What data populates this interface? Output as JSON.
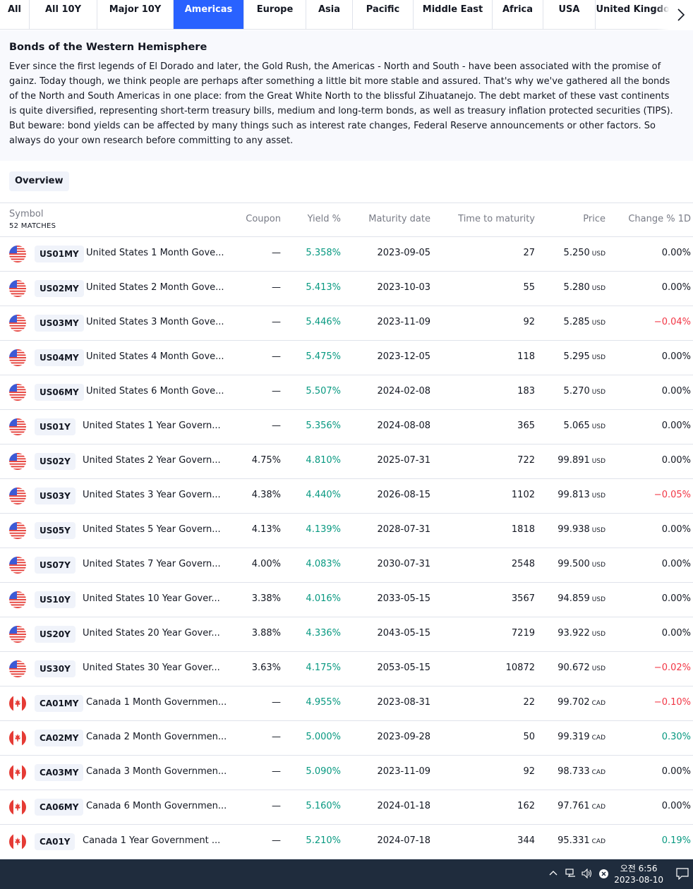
{
  "tabs": [
    {
      "label": "All",
      "width": 42
    },
    {
      "label": "All 10Y",
      "width": 96
    },
    {
      "label": "Major 10Y",
      "width": 108
    },
    {
      "label": "Americas",
      "width": 100
    },
    {
      "label": "Europe",
      "width": 88
    },
    {
      "label": "Asia",
      "width": 66
    },
    {
      "label": "Pacific",
      "width": 86
    },
    {
      "label": "Middle East",
      "width": 112
    },
    {
      "label": "Africa",
      "width": 72
    },
    {
      "label": "USA",
      "width": 74
    },
    {
      "label": "United Kingdom",
      "width": 120
    }
  ],
  "active_tab": "Americas",
  "description": {
    "title": "Bonds of the Western Hemisphere",
    "body": "Ever since the first legends of El Dorado and later, the Gold Rush, the Americas - North and South - have been associated with the promise of gainz. Today though, we think people are perhaps after something a little bit more stable and assured. That's why we've gathered all the bonds of the North and South Americas in one place: from the Great White North to the blissful Zihuatanejo. The debt market of these vast continents is quite diversified, representing short-term treasury bills, medium and long-term bonds, as well as treasury inflation protected securities (TIPS). But beware: bond yields can be affected by many things such as interest rate changes, Federal Reserve announcements or other factors. So always do your own research before committing to any asset."
  },
  "overview_label": "Overview",
  "table": {
    "headers": {
      "symbol": "Symbol",
      "matches": "52 MATCHES",
      "coupon": "Coupon",
      "yield": "Yield %",
      "maturity": "Maturity date",
      "ttm": "Time to maturity",
      "price": "Price",
      "change": "Change % 1D"
    },
    "rows": [
      {
        "flag": "us",
        "ticker": "US01MY",
        "name": "United States 1 Month Gove...",
        "coupon": "—",
        "yield": "5.358%",
        "maturity": "2023-09-05",
        "ttm": "27",
        "price": "5.250",
        "currency": "USD",
        "change": "0.00%",
        "dir": "flat"
      },
      {
        "flag": "us",
        "ticker": "US02MY",
        "name": "United States 2 Month Gove...",
        "coupon": "—",
        "yield": "5.413%",
        "maturity": "2023-10-03",
        "ttm": "55",
        "price": "5.280",
        "currency": "USD",
        "change": "0.00%",
        "dir": "flat"
      },
      {
        "flag": "us",
        "ticker": "US03MY",
        "name": "United States 3 Month Gove...",
        "coupon": "—",
        "yield": "5.446%",
        "maturity": "2023-11-09",
        "ttm": "92",
        "price": "5.285",
        "currency": "USD",
        "change": "−0.04%",
        "dir": "neg"
      },
      {
        "flag": "us",
        "ticker": "US04MY",
        "name": "United States 4 Month Gove...",
        "coupon": "—",
        "yield": "5.475%",
        "maturity": "2023-12-05",
        "ttm": "118",
        "price": "5.295",
        "currency": "USD",
        "change": "0.00%",
        "dir": "flat"
      },
      {
        "flag": "us",
        "ticker": "US06MY",
        "name": "United States 6 Month Gove...",
        "coupon": "—",
        "yield": "5.507%",
        "maturity": "2024-02-08",
        "ttm": "183",
        "price": "5.270",
        "currency": "USD",
        "change": "0.00%",
        "dir": "flat"
      },
      {
        "flag": "us",
        "ticker": "US01Y",
        "name": "United States 1 Year Govern...",
        "coupon": "—",
        "yield": "5.356%",
        "maturity": "2024-08-08",
        "ttm": "365",
        "price": "5.065",
        "currency": "USD",
        "change": "0.00%",
        "dir": "flat"
      },
      {
        "flag": "us",
        "ticker": "US02Y",
        "name": "United States 2 Year Govern...",
        "coupon": "4.75%",
        "yield": "4.810%",
        "maturity": "2025-07-31",
        "ttm": "722",
        "price": "99.891",
        "currency": "USD",
        "change": "0.00%",
        "dir": "flat"
      },
      {
        "flag": "us",
        "ticker": "US03Y",
        "name": "United States 3 Year Govern...",
        "coupon": "4.38%",
        "yield": "4.440%",
        "maturity": "2026-08-15",
        "ttm": "1102",
        "price": "99.813",
        "currency": "USD",
        "change": "−0.05%",
        "dir": "neg"
      },
      {
        "flag": "us",
        "ticker": "US05Y",
        "name": "United States 5 Year Govern...",
        "coupon": "4.13%",
        "yield": "4.139%",
        "maturity": "2028-07-31",
        "ttm": "1818",
        "price": "99.938",
        "currency": "USD",
        "change": "0.00%",
        "dir": "flat"
      },
      {
        "flag": "us",
        "ticker": "US07Y",
        "name": "United States 7 Year Govern...",
        "coupon": "4.00%",
        "yield": "4.083%",
        "maturity": "2030-07-31",
        "ttm": "2548",
        "price": "99.500",
        "currency": "USD",
        "change": "0.00%",
        "dir": "flat"
      },
      {
        "flag": "us",
        "ticker": "US10Y",
        "name": "United States 10 Year Gover...",
        "coupon": "3.38%",
        "yield": "4.016%",
        "maturity": "2033-05-15",
        "ttm": "3567",
        "price": "94.859",
        "currency": "USD",
        "change": "0.00%",
        "dir": "flat"
      },
      {
        "flag": "us",
        "ticker": "US20Y",
        "name": "United States 20 Year Gover...",
        "coupon": "3.88%",
        "yield": "4.336%",
        "maturity": "2043-05-15",
        "ttm": "7219",
        "price": "93.922",
        "currency": "USD",
        "change": "0.00%",
        "dir": "flat"
      },
      {
        "flag": "us",
        "ticker": "US30Y",
        "name": "United States 30 Year Gover...",
        "coupon": "3.63%",
        "yield": "4.175%",
        "maturity": "2053-05-15",
        "ttm": "10872",
        "price": "90.672",
        "currency": "USD",
        "change": "−0.02%",
        "dir": "neg"
      },
      {
        "flag": "ca",
        "ticker": "CA01MY",
        "name": "Canada 1 Month Governmen...",
        "coupon": "—",
        "yield": "4.955%",
        "maturity": "2023-08-31",
        "ttm": "22",
        "price": "99.702",
        "currency": "CAD",
        "change": "−0.10%",
        "dir": "neg"
      },
      {
        "flag": "ca",
        "ticker": "CA02MY",
        "name": "Canada 2 Month Governmen...",
        "coupon": "—",
        "yield": "5.000%",
        "maturity": "2023-09-28",
        "ttm": "50",
        "price": "99.319",
        "currency": "CAD",
        "change": "0.30%",
        "dir": "pos"
      },
      {
        "flag": "ca",
        "ticker": "CA03MY",
        "name": "Canada 3 Month Governmen...",
        "coupon": "—",
        "yield": "5.090%",
        "maturity": "2023-11-09",
        "ttm": "92",
        "price": "98.733",
        "currency": "CAD",
        "change": "0.00%",
        "dir": "flat"
      },
      {
        "flag": "ca",
        "ticker": "CA06MY",
        "name": "Canada 6 Month Governmen...",
        "coupon": "—",
        "yield": "5.160%",
        "maturity": "2024-01-18",
        "ttm": "162",
        "price": "97.761",
        "currency": "CAD",
        "change": "0.00%",
        "dir": "flat"
      },
      {
        "flag": "ca",
        "ticker": "CA01Y",
        "name": "Canada 1 Year Government ...",
        "coupon": "—",
        "yield": "5.210%",
        "maturity": "2024-07-18",
        "ttm": "344",
        "price": "95.331",
        "currency": "CAD",
        "change": "0.19%",
        "dir": "pos"
      }
    ]
  },
  "taskbar": {
    "time": "오전 6:56",
    "date": "2023-08-10",
    "icons": [
      "chevron-up-icon",
      "network-icon",
      "volume-icon",
      "close-circle-icon",
      "notification-icon"
    ]
  },
  "colors": {
    "accent": "#2962ff",
    "positive": "#089981",
    "negative": "#f23645",
    "taskbar": "#1f2c3d"
  }
}
